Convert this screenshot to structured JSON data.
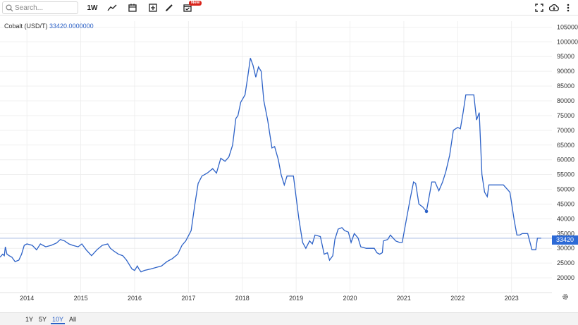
{
  "toolbar": {
    "search_placeholder": "Search...",
    "interval_label": "1W",
    "new_badge": "New"
  },
  "legend": {
    "name": "Cobalt (USD/T)",
    "value": "33420.0000000"
  },
  "price_tag": "33420",
  "ranges": [
    {
      "label": "1Y",
      "active": false
    },
    {
      "label": "5Y",
      "active": false
    },
    {
      "label": "10Y",
      "active": true
    },
    {
      "label": "All",
      "active": false
    }
  ],
  "colors": {
    "line": "#2d62c7",
    "price_tag": "#2d6ad6",
    "badge": "#d9241b"
  },
  "chart_data": {
    "type": "line",
    "title": "Cobalt (USD/T)",
    "xlabel": "",
    "ylabel": "",
    "ylim": [
      15000,
      107000
    ],
    "xlim": [
      2013.5,
      2023.75
    ],
    "x_ticks": [
      "2014",
      "2015",
      "2016",
      "2017",
      "2018",
      "2019",
      "2020",
      "2021",
      "2022",
      "2023"
    ],
    "y_ticks": [
      20000,
      25000,
      30000,
      35000,
      40000,
      45000,
      50000,
      55000,
      60000,
      65000,
      70000,
      75000,
      80000,
      85000,
      90000,
      95000,
      100000,
      105000
    ],
    "grid": true,
    "last_value": 33420,
    "marker": {
      "x": 2021.42,
      "y": 42500
    },
    "series": [
      {
        "name": "Cobalt (USD/T)",
        "points": [
          [
            2013.5,
            27000
          ],
          [
            2013.55,
            28000
          ],
          [
            2013.58,
            27500
          ],
          [
            2013.6,
            30500
          ],
          [
            2013.63,
            28000
          ],
          [
            2013.67,
            27500
          ],
          [
            2013.72,
            27000
          ],
          [
            2013.78,
            25500
          ],
          [
            2013.85,
            26000
          ],
          [
            2013.9,
            28000
          ],
          [
            2013.95,
            31000
          ],
          [
            2014.0,
            31500
          ],
          [
            2014.1,
            31000
          ],
          [
            2014.18,
            29500
          ],
          [
            2014.25,
            31500
          ],
          [
            2014.35,
            30500
          ],
          [
            2014.45,
            31000
          ],
          [
            2014.55,
            31800
          ],
          [
            2014.62,
            33000
          ],
          [
            2014.7,
            32500
          ],
          [
            2014.78,
            31500
          ],
          [
            2014.85,
            31000
          ],
          [
            2014.95,
            30500
          ],
          [
            2015.02,
            31500
          ],
          [
            2015.1,
            29500
          ],
          [
            2015.2,
            27500
          ],
          [
            2015.3,
            29500
          ],
          [
            2015.4,
            31000
          ],
          [
            2015.5,
            31500
          ],
          [
            2015.55,
            30000
          ],
          [
            2015.62,
            29000
          ],
          [
            2015.7,
            28000
          ],
          [
            2015.78,
            27500
          ],
          [
            2015.85,
            26000
          ],
          [
            2015.9,
            24500
          ],
          [
            2015.95,
            23000
          ],
          [
            2016.0,
            22500
          ],
          [
            2016.05,
            24000
          ],
          [
            2016.08,
            23000
          ],
          [
            2016.12,
            22000
          ],
          [
            2016.18,
            22500
          ],
          [
            2016.3,
            23000
          ],
          [
            2016.4,
            23500
          ],
          [
            2016.5,
            24000
          ],
          [
            2016.6,
            25500
          ],
          [
            2016.7,
            26500
          ],
          [
            2016.8,
            28000
          ],
          [
            2016.88,
            31000
          ],
          [
            2016.95,
            32500
          ],
          [
            2017.05,
            36000
          ],
          [
            2017.12,
            45000
          ],
          [
            2017.18,
            52000
          ],
          [
            2017.25,
            54500
          ],
          [
            2017.35,
            55500
          ],
          [
            2017.45,
            57000
          ],
          [
            2017.52,
            55500
          ],
          [
            2017.6,
            60500
          ],
          [
            2017.68,
            59500
          ],
          [
            2017.75,
            61000
          ],
          [
            2017.82,
            65000
          ],
          [
            2017.88,
            74000
          ],
          [
            2017.92,
            75000
          ],
          [
            2017.97,
            79500
          ],
          [
            2018.05,
            82000
          ],
          [
            2018.1,
            88000
          ],
          [
            2018.15,
            94500
          ],
          [
            2018.2,
            92000
          ],
          [
            2018.25,
            88000
          ],
          [
            2018.3,
            91500
          ],
          [
            2018.35,
            90000
          ],
          [
            2018.4,
            80000
          ],
          [
            2018.47,
            73500
          ],
          [
            2018.55,
            64000
          ],
          [
            2018.6,
            64500
          ],
          [
            2018.67,
            60000
          ],
          [
            2018.72,
            55000
          ],
          [
            2018.78,
            51500
          ],
          [
            2018.83,
            54500
          ],
          [
            2018.95,
            54500
          ],
          [
            2019.05,
            40000
          ],
          [
            2019.12,
            32000
          ],
          [
            2019.18,
            30000
          ],
          [
            2019.25,
            32500
          ],
          [
            2019.3,
            31500
          ],
          [
            2019.35,
            34500
          ],
          [
            2019.45,
            34000
          ],
          [
            2019.52,
            28000
          ],
          [
            2019.58,
            28500
          ],
          [
            2019.62,
            26000
          ],
          [
            2019.68,
            27500
          ],
          [
            2019.72,
            33000
          ],
          [
            2019.78,
            36500
          ],
          [
            2019.85,
            37000
          ],
          [
            2019.9,
            36000
          ],
          [
            2019.97,
            35500
          ],
          [
            2020.02,
            32000
          ],
          [
            2020.08,
            35000
          ],
          [
            2020.15,
            33500
          ],
          [
            2020.2,
            30500
          ],
          [
            2020.3,
            30000
          ],
          [
            2020.45,
            30000
          ],
          [
            2020.5,
            28500
          ],
          [
            2020.55,
            28000
          ],
          [
            2020.6,
            28500
          ],
          [
            2020.62,
            32500
          ],
          [
            2020.7,
            33000
          ],
          [
            2020.75,
            34500
          ],
          [
            2020.8,
            33500
          ],
          [
            2020.85,
            32500
          ],
          [
            2020.92,
            32000
          ],
          [
            2020.97,
            32000
          ],
          [
            2021.05,
            40000
          ],
          [
            2021.12,
            47000
          ],
          [
            2021.18,
            52500
          ],
          [
            2021.22,
            52000
          ],
          [
            2021.28,
            45000
          ],
          [
            2021.35,
            44000
          ],
          [
            2021.42,
            42500
          ],
          [
            2021.47,
            47500
          ],
          [
            2021.52,
            52500
          ],
          [
            2021.58,
            52500
          ],
          [
            2021.65,
            49500
          ],
          [
            2021.72,
            52500
          ],
          [
            2021.78,
            56000
          ],
          [
            2021.85,
            61500
          ],
          [
            2021.92,
            70000
          ],
          [
            2022.0,
            71000
          ],
          [
            2022.05,
            70500
          ],
          [
            2022.1,
            76000
          ],
          [
            2022.15,
            82000
          ],
          [
            2022.22,
            82000
          ],
          [
            2022.3,
            82000
          ],
          [
            2022.35,
            73500
          ],
          [
            2022.4,
            76000
          ],
          [
            2022.45,
            55000
          ],
          [
            2022.5,
            49000
          ],
          [
            2022.55,
            47500
          ],
          [
            2022.58,
            51500
          ],
          [
            2022.7,
            51500
          ],
          [
            2022.85,
            51500
          ],
          [
            2022.97,
            49000
          ],
          [
            2023.05,
            39500
          ],
          [
            2023.1,
            34500
          ],
          [
            2023.15,
            34500
          ],
          [
            2023.2,
            35000
          ],
          [
            2023.3,
            35000
          ],
          [
            2023.38,
            29500
          ],
          [
            2023.45,
            29500
          ],
          [
            2023.48,
            33420
          ],
          [
            2023.55,
            33420
          ]
        ]
      }
    ]
  }
}
